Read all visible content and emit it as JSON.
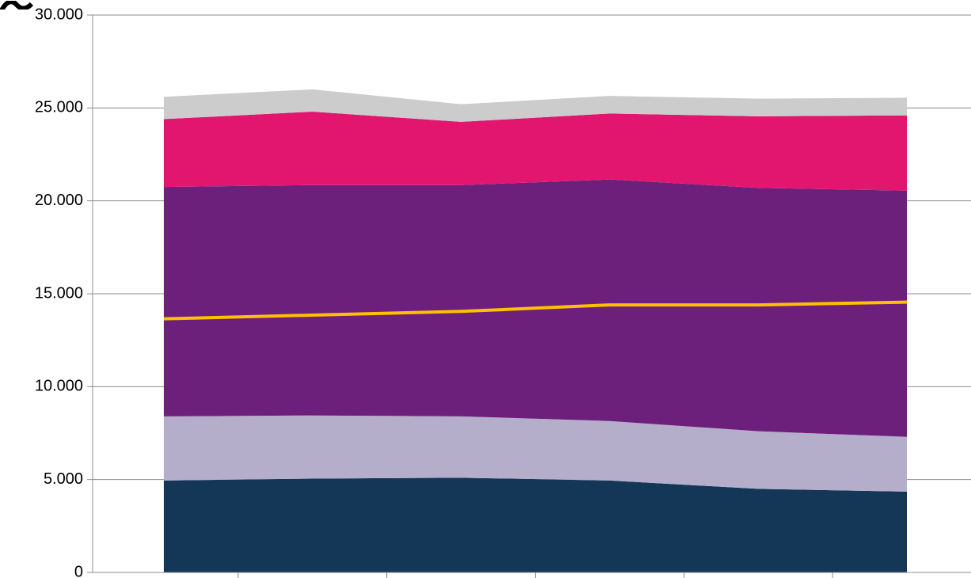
{
  "chart_data": {
    "type": "area",
    "stacked": true,
    "title": "",
    "xlabel": "",
    "ylabel": "",
    "ylim": [
      0,
      30000
    ],
    "y_ticks": [
      {
        "value": 0,
        "label": "0"
      },
      {
        "value": 5000,
        "label": "5.000"
      },
      {
        "value": 10000,
        "label": "10.000"
      },
      {
        "value": 15000,
        "label": "15.000"
      },
      {
        "value": 20000,
        "label": "20.000"
      },
      {
        "value": 25000,
        "label": "25.000"
      },
      {
        "value": 30000,
        "label": "30.000"
      }
    ],
    "categories": [
      "",
      "",
      "",
      "",
      "",
      ""
    ],
    "grid": true,
    "legend": "none",
    "series": [
      {
        "color": "#143757",
        "values": [
          4950,
          5050,
          5100,
          4950,
          4500,
          4350
        ]
      },
      {
        "color": "#b5aecb",
        "values": [
          3450,
          3400,
          3300,
          3200,
          3100,
          2950
        ]
      },
      {
        "color": "#6d207b",
        "values": [
          12350,
          12400,
          12450,
          13000,
          13100,
          13250
        ]
      },
      {
        "color": "#e3166f",
        "values": [
          3650,
          3950,
          3400,
          3550,
          3850,
          4050
        ]
      },
      {
        "color": "#cccccc",
        "values": [
          1200,
          1200,
          950,
          950,
          950,
          950
        ]
      }
    ],
    "line_series": [
      {
        "color": "#ffc000",
        "values": [
          13650,
          13850,
          14050,
          14400,
          14400,
          14550
        ]
      }
    ]
  }
}
